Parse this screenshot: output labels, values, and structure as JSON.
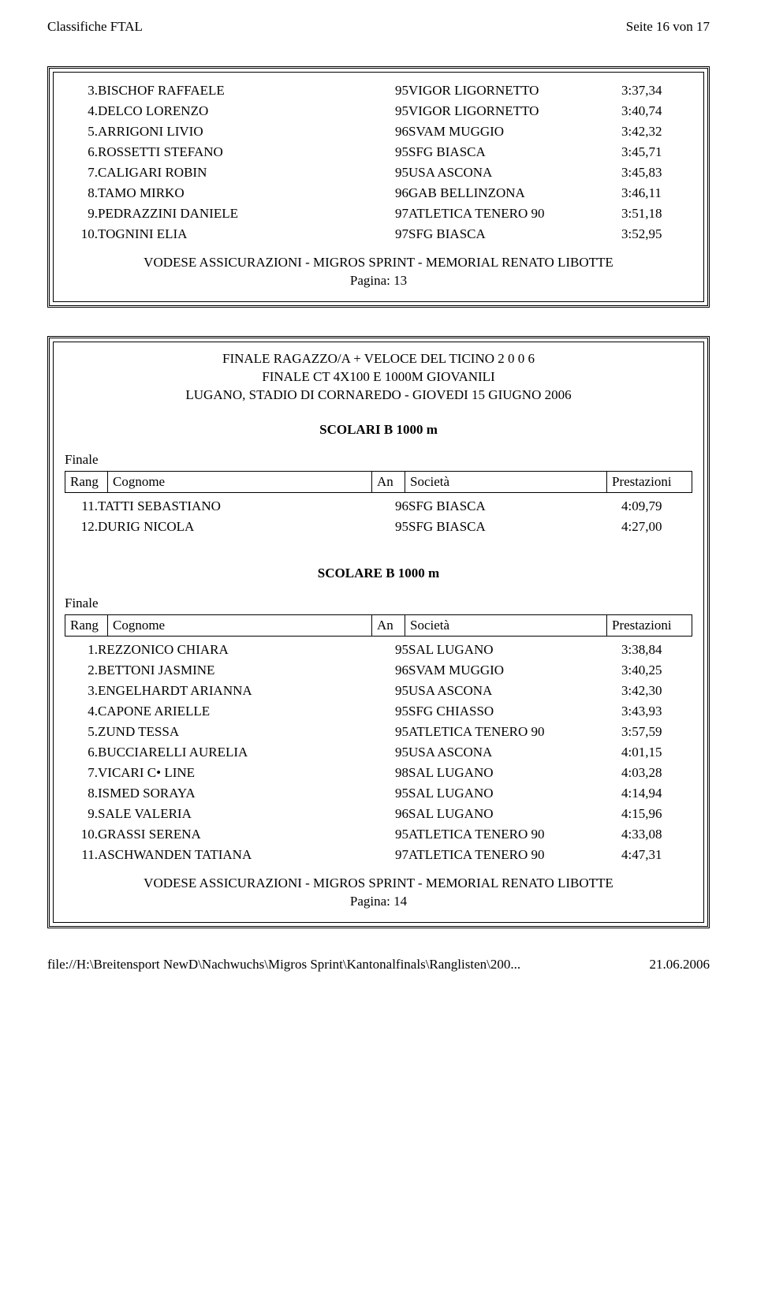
{
  "header": {
    "left": "Classifiche FTAL",
    "right": "Seite 16 von 17"
  },
  "frame1": {
    "rows": [
      {
        "rank": "3.",
        "name": "BISCHOF RAFFAELE",
        "an": "95",
        "soc": "VIGOR LIGORNETTO",
        "prest": "3:37,34"
      },
      {
        "rank": "4.",
        "name": "DELCO LORENZO",
        "an": "95",
        "soc": "VIGOR LIGORNETTO",
        "prest": "3:40,74"
      },
      {
        "rank": "5.",
        "name": "ARRIGONI LIVIO",
        "an": "96",
        "soc": "SVAM MUGGIO",
        "prest": "3:42,32"
      },
      {
        "rank": "6.",
        "name": "ROSSETTI STEFANO",
        "an": "95",
        "soc": "SFG BIASCA",
        "prest": "3:45,71"
      },
      {
        "rank": "7.",
        "name": "CALIGARI ROBIN",
        "an": "95",
        "soc": "USA ASCONA",
        "prest": "3:45,83"
      },
      {
        "rank": "8.",
        "name": "TAMO MIRKO",
        "an": "96",
        "soc": "GAB BELLINZONA",
        "prest": "3:46,11"
      },
      {
        "rank": "9.",
        "name": "PEDRAZZINI DANIELE",
        "an": "97",
        "soc": "ATLETICA TENERO 90",
        "prest": "3:51,18"
      },
      {
        "rank": "10.",
        "name": "TOGNINI ELIA",
        "an": "97",
        "soc": "SFG BIASCA",
        "prest": "3:52,95"
      }
    ],
    "sponsor1": "VODESE ASSICURAZIONI - MIGROS SPRINT - MEMORIAL RENATO LIBOTTE",
    "sponsor2": "Pagina: 13"
  },
  "event": {
    "line1": "FINALE RAGAZZO/A + VELOCE DEL TICINO 2 0 0 6",
    "line2": "FINALE CT 4X100 E 1000M GIOVANILI",
    "line3": "LUGANO, STADIO DI CORNAREDO - GIOVEDI 15 GIUGNO 2006"
  },
  "cat1": {
    "title": "SCOLARI B 1000 m",
    "finale": "Finale",
    "headers": {
      "rang": "Rang",
      "cog": "Cognome",
      "an": "An",
      "soc": "Società",
      "prest": "Prestazioni"
    },
    "rows": [
      {
        "rank": "11.",
        "name": "TATTI SEBASTIANO",
        "an": "96",
        "soc": "SFG BIASCA",
        "prest": "4:09,79"
      },
      {
        "rank": "12.",
        "name": "DURIG NICOLA",
        "an": "95",
        "soc": "SFG BIASCA",
        "prest": "4:27,00"
      }
    ]
  },
  "cat2": {
    "title": "SCOLARE B 1000 m",
    "finale": "Finale",
    "headers": {
      "rang": "Rang",
      "cog": "Cognome",
      "an": "An",
      "soc": "Società",
      "prest": "Prestazioni"
    },
    "rows": [
      {
        "rank": "1.",
        "name": "REZZONICO CHIARA",
        "an": "95",
        "soc": "SAL LUGANO",
        "prest": "3:38,84"
      },
      {
        "rank": "2.",
        "name": "BETTONI JASMINE",
        "an": "96",
        "soc": "SVAM MUGGIO",
        "prest": "3:40,25"
      },
      {
        "rank": "3.",
        "name": "ENGELHARDT ARIANNA",
        "an": "95",
        "soc": "USA ASCONA",
        "prest": "3:42,30"
      },
      {
        "rank": "4.",
        "name": "CAPONE ARIELLE",
        "an": "95",
        "soc": "SFG CHIASSO",
        "prest": "3:43,93"
      },
      {
        "rank": "5.",
        "name": "ZUND TESSA",
        "an": "95",
        "soc": "ATLETICA TENERO 90",
        "prest": "3:57,59"
      },
      {
        "rank": "6.",
        "name": "BUCCIARELLI AURELIA",
        "an": "95",
        "soc": "USA ASCONA",
        "prest": "4:01,15"
      },
      {
        "rank": "7.",
        "name": "VICARI C• LINE",
        "an": "98",
        "soc": "SAL LUGANO",
        "prest": "4:03,28"
      },
      {
        "rank": "8.",
        "name": "ISMED SORAYA",
        "an": "95",
        "soc": "SAL LUGANO",
        "prest": "4:14,94"
      },
      {
        "rank": "9.",
        "name": "SALE VALERIA",
        "an": "96",
        "soc": "SAL LUGANO",
        "prest": "4:15,96"
      },
      {
        "rank": "10.",
        "name": "GRASSI SERENA",
        "an": "95",
        "soc": "ATLETICA TENERO 90",
        "prest": "4:33,08"
      },
      {
        "rank": "11.",
        "name": "ASCHWANDEN TATIANA",
        "an": "97",
        "soc": "ATLETICA TENERO 90",
        "prest": "4:47,31"
      }
    ],
    "sponsor1": "VODESE ASSICURAZIONI - MIGROS SPRINT - MEMORIAL RENATO LIBOTTE",
    "sponsor2": "Pagina: 14"
  },
  "footer": {
    "left": "file://H:\\Breitensport NewD\\Nachwuchs\\Migros Sprint\\Kantonalfinals\\Ranglisten\\200...",
    "right": "21.06.2006"
  }
}
